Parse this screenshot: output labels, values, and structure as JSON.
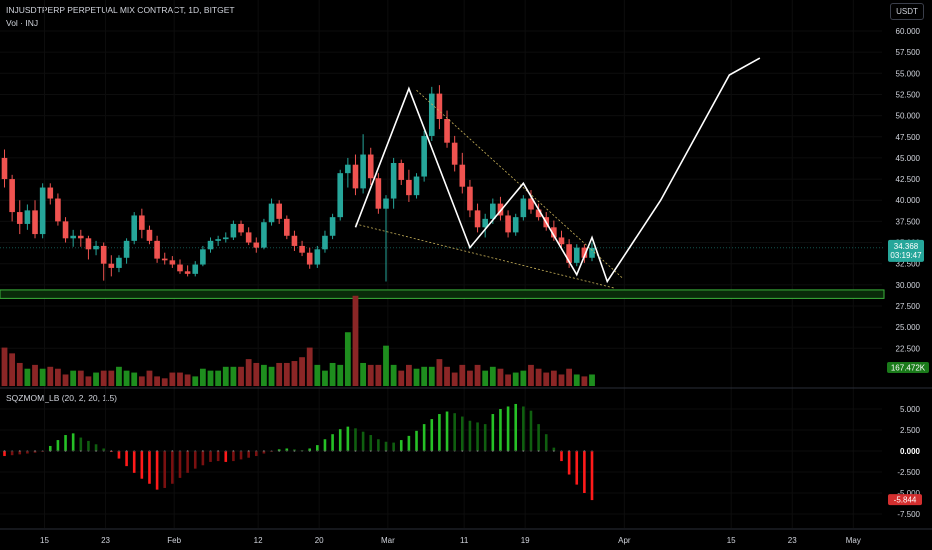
{
  "header": {
    "symbol_line": "INJUSDTPERP PERPETUAL MIX CONTRACT, 1D, BITGET",
    "volume_line": "Vol · INJ",
    "indicator_line": "SQZMOM_LB (20, 2, 20, 1.5)",
    "currency_button": "USDT"
  },
  "colors": {
    "up": "#26a69a",
    "down": "#ef5350",
    "vol_up": "#1e8e1e",
    "vol_down": "#8b2626",
    "mom_up_strong": "#26c126",
    "mom_up_weak": "#0f5f0f",
    "mom_down_strong": "#ff1a1a",
    "mom_down_weak": "#7a1010",
    "pattern": "#ffffff",
    "zone": "#3bb33b",
    "grid": "#0d0d0d"
  },
  "chart_data": [
    {
      "type": "candlestick",
      "title": "INJUSDTPERP PERPETUAL MIX CONTRACT, 1D, BITGET",
      "y_axis_ticks": [
        "60.000",
        "57.500",
        "55.000",
        "52.500",
        "50.000",
        "47.500",
        "45.000",
        "42.500",
        "40.000",
        "37.500",
        "35.000",
        "32.500",
        "30.000",
        "27.500",
        "25.000",
        "22.500"
      ],
      "ylim": [
        20.6,
        62.0
      ],
      "x_axis_ticks": [
        "15",
        "23",
        "Feb",
        "12",
        "20",
        "Mar",
        "11",
        "19",
        "Apr",
        "15",
        "23",
        "May"
      ],
      "x_tick_day_index": [
        0,
        8,
        17,
        28,
        36,
        45,
        55,
        63,
        76,
        90,
        98,
        106
      ],
      "last_price_label": "34.368",
      "countdown_label": "03:19:47",
      "candles_ohlc": [
        [
          45.0,
          46.0,
          41.5,
          42.5
        ],
        [
          42.5,
          43.0,
          37.5,
          38.6
        ],
        [
          38.6,
          40.0,
          36.0,
          37.2
        ],
        [
          37.2,
          39.5,
          36.5,
          38.8
        ],
        [
          38.8,
          40.0,
          35.5,
          36.0
        ],
        [
          36.0,
          42.0,
          35.5,
          41.5
        ],
        [
          41.5,
          42.0,
          39.5,
          40.2
        ],
        [
          40.2,
          40.8,
          37.0,
          37.5
        ],
        [
          37.5,
          38.0,
          35.0,
          35.5
        ],
        [
          35.5,
          36.5,
          34.5,
          35.8
        ],
        [
          35.8,
          36.5,
          34.5,
          35.5
        ],
        [
          35.5,
          35.8,
          33.0,
          34.2
        ],
        [
          34.2,
          35.2,
          33.5,
          34.6
        ],
        [
          34.6,
          35.0,
          30.5,
          32.5
        ],
        [
          32.5,
          33.5,
          31.0,
          32.0
        ],
        [
          32.0,
          33.5,
          31.5,
          33.2
        ],
        [
          33.2,
          35.5,
          32.5,
          35.2
        ],
        [
          35.2,
          38.6,
          34.8,
          38.2
        ],
        [
          38.2,
          39.0,
          35.5,
          36.5
        ],
        [
          36.5,
          37.0,
          34.8,
          35.2
        ],
        [
          35.2,
          35.8,
          32.6,
          33.1
        ],
        [
          33.1,
          33.8,
          32.4,
          32.9
        ],
        [
          32.9,
          33.4,
          32.0,
          32.4
        ],
        [
          32.4,
          33.0,
          31.3,
          31.6
        ],
        [
          31.6,
          32.3,
          31.0,
          31.3
        ],
        [
          31.3,
          32.8,
          31.0,
          32.4
        ],
        [
          32.4,
          34.6,
          32.2,
          34.2
        ],
        [
          34.2,
          35.6,
          33.8,
          35.2
        ],
        [
          35.2,
          35.8,
          34.6,
          35.4
        ],
        [
          35.4,
          36.2,
          35.0,
          35.6
        ],
        [
          35.6,
          37.6,
          35.3,
          37.2
        ],
        [
          37.2,
          37.6,
          35.8,
          36.2
        ],
        [
          36.2,
          36.8,
          34.7,
          35.0
        ],
        [
          35.0,
          35.6,
          33.8,
          34.4
        ],
        [
          34.4,
          37.8,
          34.2,
          37.4
        ],
        [
          37.4,
          40.2,
          37.0,
          39.6
        ],
        [
          39.6,
          40.0,
          37.2,
          37.8
        ],
        [
          37.8,
          38.2,
          35.4,
          35.8
        ],
        [
          35.8,
          36.4,
          34.0,
          34.6
        ],
        [
          34.6,
          35.2,
          33.4,
          33.8
        ],
        [
          33.8,
          34.4,
          31.9,
          32.4
        ],
        [
          32.4,
          34.6,
          32.0,
          34.2
        ],
        [
          34.2,
          36.4,
          33.8,
          35.8
        ],
        [
          35.8,
          38.4,
          35.4,
          38.0
        ],
        [
          38.0,
          43.6,
          37.6,
          43.2
        ],
        [
          43.2,
          45.0,
          41.5,
          44.2
        ],
        [
          44.2,
          45.4,
          40.6,
          41.4
        ],
        [
          41.4,
          47.8,
          40.8,
          45.4
        ],
        [
          45.4,
          46.2,
          41.8,
          42.6
        ],
        [
          42.6,
          43.2,
          38.4,
          39.0
        ],
        [
          39.0,
          40.6,
          30.4,
          40.2
        ],
        [
          40.2,
          45.0,
          39.0,
          44.4
        ],
        [
          44.4,
          44.8,
          41.8,
          42.4
        ],
        [
          42.4,
          43.6,
          39.8,
          40.6
        ],
        [
          40.6,
          43.2,
          40.2,
          42.8
        ],
        [
          42.8,
          48.2,
          42.2,
          47.6
        ],
        [
          47.6,
          53.4,
          47.0,
          52.6
        ],
        [
          52.6,
          53.6,
          48.4,
          49.6
        ],
        [
          49.6,
          50.6,
          46.2,
          46.8
        ],
        [
          46.8,
          47.6,
          43.4,
          44.2
        ],
        [
          44.2,
          45.6,
          40.8,
          41.6
        ],
        [
          41.6,
          42.4,
          38.0,
          38.8
        ],
        [
          38.8,
          39.6,
          36.2,
          36.8
        ],
        [
          36.8,
          38.4,
          35.6,
          37.8
        ],
        [
          37.8,
          40.2,
          37.2,
          39.6
        ],
        [
          39.6,
          40.4,
          37.6,
          38.2
        ],
        [
          38.2,
          38.8,
          35.6,
          36.2
        ],
        [
          36.2,
          38.4,
          35.8,
          38.0
        ],
        [
          38.0,
          40.6,
          37.6,
          40.2
        ],
        [
          40.2,
          41.2,
          38.4,
          38.9
        ],
        [
          38.9,
          39.6,
          37.6,
          38.0
        ],
        [
          38.0,
          38.6,
          36.4,
          36.8
        ],
        [
          36.8,
          37.6,
          35.2,
          35.6
        ],
        [
          35.6,
          36.4,
          34.4,
          34.8
        ],
        [
          34.8,
          35.4,
          32.0,
          32.6
        ],
        [
          32.6,
          34.8,
          32.2,
          34.4
        ],
        [
          34.4,
          34.8,
          32.6,
          33.2
        ],
        [
          33.2,
          35.0,
          32.8,
          34.368
        ]
      ],
      "pattern_points": [
        [
          46,
          36.8
        ],
        [
          53,
          53.2
        ],
        [
          61,
          34.4
        ],
        [
          68,
          42.0
        ],
        [
          75,
          31.2
        ],
        [
          77,
          35.6
        ],
        [
          79,
          30.4
        ],
        [
          86,
          40.0
        ],
        [
          95,
          54.8
        ],
        [
          99,
          56.8
        ]
      ],
      "trendlines": [
        {
          "from": [
            54,
            53.0
          ],
          "to": [
            81,
            30.8
          ]
        },
        {
          "from": [
            46,
            37.2
          ],
          "to": [
            80,
            29.6
          ]
        }
      ],
      "support_zone": [
        28.4,
        29.4
      ]
    },
    {
      "type": "bar",
      "title": "Vol · INJ",
      "last_value_label": "167.472K",
      "volume_values": [
        20,
        17,
        12,
        9,
        11,
        9,
        10,
        9,
        6,
        8,
        8,
        5,
        7,
        8,
        8,
        10,
        8,
        7,
        5,
        8,
        5,
        4,
        7,
        7,
        6,
        5,
        9,
        8,
        8,
        10,
        10,
        10,
        14,
        12,
        11,
        10,
        12,
        12,
        13,
        15,
        20,
        11,
        8,
        12,
        11,
        28,
        47,
        12,
        11,
        11,
        21,
        11,
        8,
        11,
        9,
        10,
        10,
        14,
        10,
        7,
        11,
        8,
        11,
        8,
        10,
        9,
        6,
        7,
        8,
        11,
        9,
        7,
        8,
        6,
        9,
        6,
        5,
        6
      ],
      "ylim": [
        0,
        50
      ]
    },
    {
      "type": "bar",
      "title": "SQZMOM_LB (20, 2, 20, 1.5)",
      "y_axis_ticks": [
        "5.000",
        "2.500",
        "0.000",
        "-2.500",
        "-5.000",
        "-7.500"
      ],
      "last_value_label": "-5.844",
      "ylim": [
        -9.2,
        6.6
      ],
      "momentum_values": [
        -0.6,
        -0.5,
        -0.4,
        -0.3,
        -0.2,
        -0.1,
        0.6,
        1.3,
        1.9,
        2.1,
        1.6,
        1.2,
        0.8,
        0.3,
        -0.1,
        -0.9,
        -1.8,
        -2.6,
        -3.3,
        -3.9,
        -4.6,
        -4.4,
        -3.9,
        -3.2,
        -2.6,
        -2.1,
        -1.7,
        -1.3,
        -1.2,
        -1.3,
        -1.2,
        -1.0,
        -0.8,
        -0.6,
        -0.3,
        -0.1,
        0.2,
        0.3,
        0.2,
        0.1,
        0.3,
        0.7,
        1.4,
        2.0,
        2.6,
        2.9,
        2.7,
        2.3,
        1.9,
        1.4,
        1.1,
        1.0,
        1.3,
        1.8,
        2.4,
        3.2,
        3.8,
        4.4,
        4.7,
        4.5,
        4.1,
        3.6,
        3.4,
        3.2,
        4.4,
        5.0,
        5.3,
        5.6,
        5.3,
        4.8,
        3.2,
        2.0,
        0.4,
        -1.2,
        -2.8,
        -4.0,
        -5.0,
        -5.844
      ],
      "mom_axis_day_offset": 0
    }
  ]
}
